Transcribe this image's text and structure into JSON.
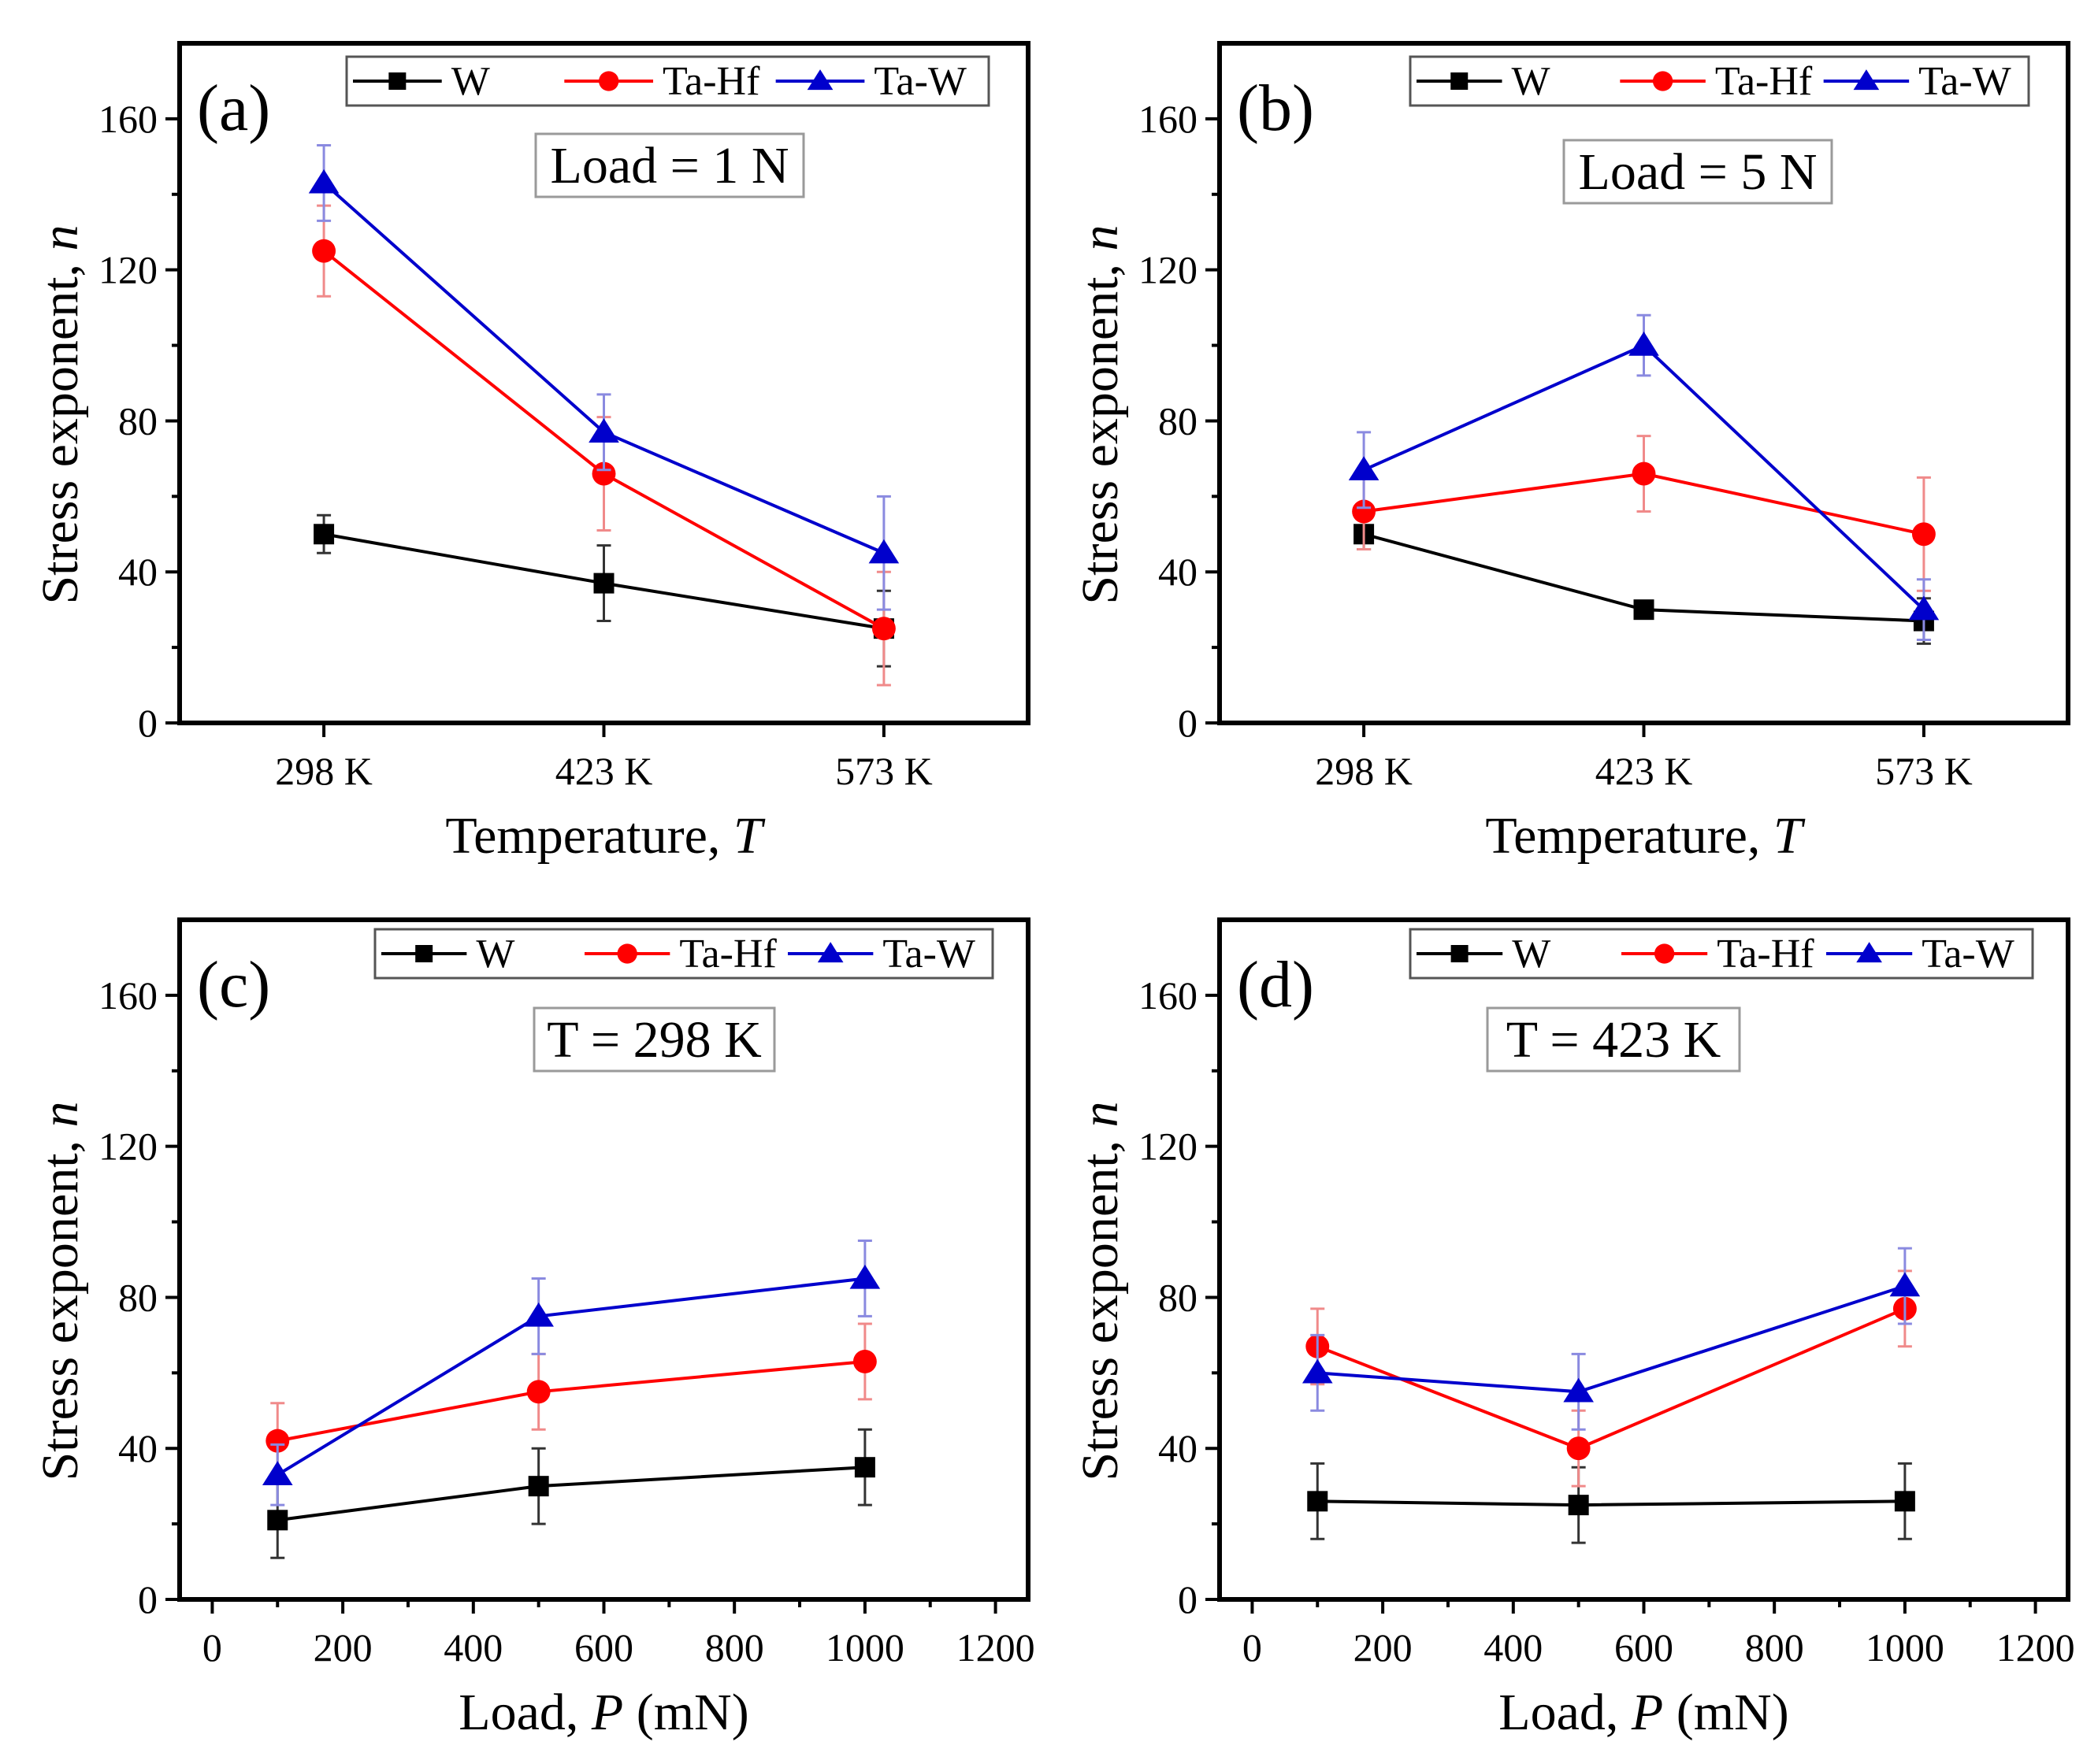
{
  "colors": {
    "W": "#000000",
    "Ta-Hf": "#ff0000",
    "Ta-W": "#0000cc"
  },
  "chart_data": [
    {
      "type": "line",
      "panel_label": "(a)",
      "condition": "Load = 1 N",
      "xlabel_main": "Temperature, ",
      "xlabel_var": "T",
      "xlabel_tail": "",
      "ylabel_main": "Stress exponent, ",
      "ylabel_var": "n",
      "x_kind": "categorical",
      "categories": [
        "298 K",
        "423 K",
        "573 K"
      ],
      "yticks": [
        "0",
        "40",
        "80",
        "120",
        "160"
      ],
      "ylim": [
        0,
        180
      ],
      "legend_position": "top",
      "series": [
        {
          "name": "W",
          "marker": "square",
          "values": [
            50,
            37,
            25
          ],
          "errors": [
            5,
            10,
            10
          ]
        },
        {
          "name": "Ta-Hf",
          "marker": "circle",
          "values": [
            125,
            66,
            25
          ],
          "errors": [
            12,
            15,
            15
          ]
        },
        {
          "name": "Ta-W",
          "marker": "triangle",
          "values": [
            143,
            77,
            45
          ],
          "errors": [
            10,
            10,
            15
          ]
        }
      ]
    },
    {
      "type": "line",
      "panel_label": "(b)",
      "condition": "Load = 5 N",
      "xlabel_main": "Temperature, ",
      "xlabel_var": "T",
      "xlabel_tail": "",
      "ylabel_main": "Stress exponent, ",
      "ylabel_var": "n",
      "x_kind": "categorical",
      "categories": [
        "298 K",
        "423 K",
        "573 K"
      ],
      "yticks": [
        "0",
        "40",
        "80",
        "120",
        "160"
      ],
      "ylim": [
        0,
        180
      ],
      "legend_position": "top",
      "series": [
        {
          "name": "W",
          "marker": "square",
          "values": [
            50,
            30,
            27
          ],
          "errors": [
            4,
            2,
            6
          ]
        },
        {
          "name": "Ta-Hf",
          "marker": "circle",
          "values": [
            56,
            66,
            50
          ],
          "errors": [
            10,
            10,
            15
          ]
        },
        {
          "name": "Ta-W",
          "marker": "triangle",
          "values": [
            67,
            100,
            30
          ],
          "errors": [
            10,
            8,
            8
          ]
        }
      ]
    },
    {
      "type": "line",
      "panel_label": "(c)",
      "condition": "T = 298 K",
      "xlabel_main": "Load, ",
      "xlabel_var": "P",
      "xlabel_tail": " (mN)",
      "ylabel_main": "Stress exponent, ",
      "ylabel_var": "n",
      "x_kind": "numeric",
      "x": [
        100,
        500,
        1000
      ],
      "xlim": [
        -50,
        1250
      ],
      "xticks": [
        "0",
        "200",
        "400",
        "600",
        "800",
        "1000",
        "1200"
      ],
      "yticks": [
        "0",
        "40",
        "80",
        "120",
        "160"
      ],
      "ylim": [
        0,
        180
      ],
      "legend_position": "top",
      "series": [
        {
          "name": "W",
          "marker": "square",
          "values": [
            21,
            30,
            35
          ],
          "errors": [
            10,
            10,
            10
          ]
        },
        {
          "name": "Ta-Hf",
          "marker": "circle",
          "values": [
            42,
            55,
            63
          ],
          "errors": [
            10,
            10,
            10
          ]
        },
        {
          "name": "Ta-W",
          "marker": "triangle",
          "values": [
            33,
            75,
            85
          ],
          "errors": [
            8,
            10,
            10
          ]
        }
      ]
    },
    {
      "type": "line",
      "panel_label": "(d)",
      "condition": "T = 423 K",
      "xlabel_main": "Load, ",
      "xlabel_var": "P",
      "xlabel_tail": " (mN)",
      "ylabel_main": "Stress exponent, ",
      "ylabel_var": "n",
      "x_kind": "numeric",
      "x": [
        100,
        500,
        1000
      ],
      "xlim": [
        -50,
        1250
      ],
      "xticks": [
        "0",
        "200",
        "400",
        "600",
        "800",
        "1000",
        "1200"
      ],
      "yticks": [
        "0",
        "40",
        "80",
        "120",
        "160"
      ],
      "ylim": [
        0,
        180
      ],
      "legend_position": "top",
      "series": [
        {
          "name": "W",
          "marker": "square",
          "values": [
            26,
            25,
            26
          ],
          "errors": [
            10,
            10,
            10
          ]
        },
        {
          "name": "Ta-Hf",
          "marker": "circle",
          "values": [
            67,
            40,
            77
          ],
          "errors": [
            10,
            10,
            10
          ]
        },
        {
          "name": "Ta-W",
          "marker": "triangle",
          "values": [
            60,
            55,
            83
          ],
          "errors": [
            10,
            10,
            10
          ]
        }
      ]
    }
  ]
}
